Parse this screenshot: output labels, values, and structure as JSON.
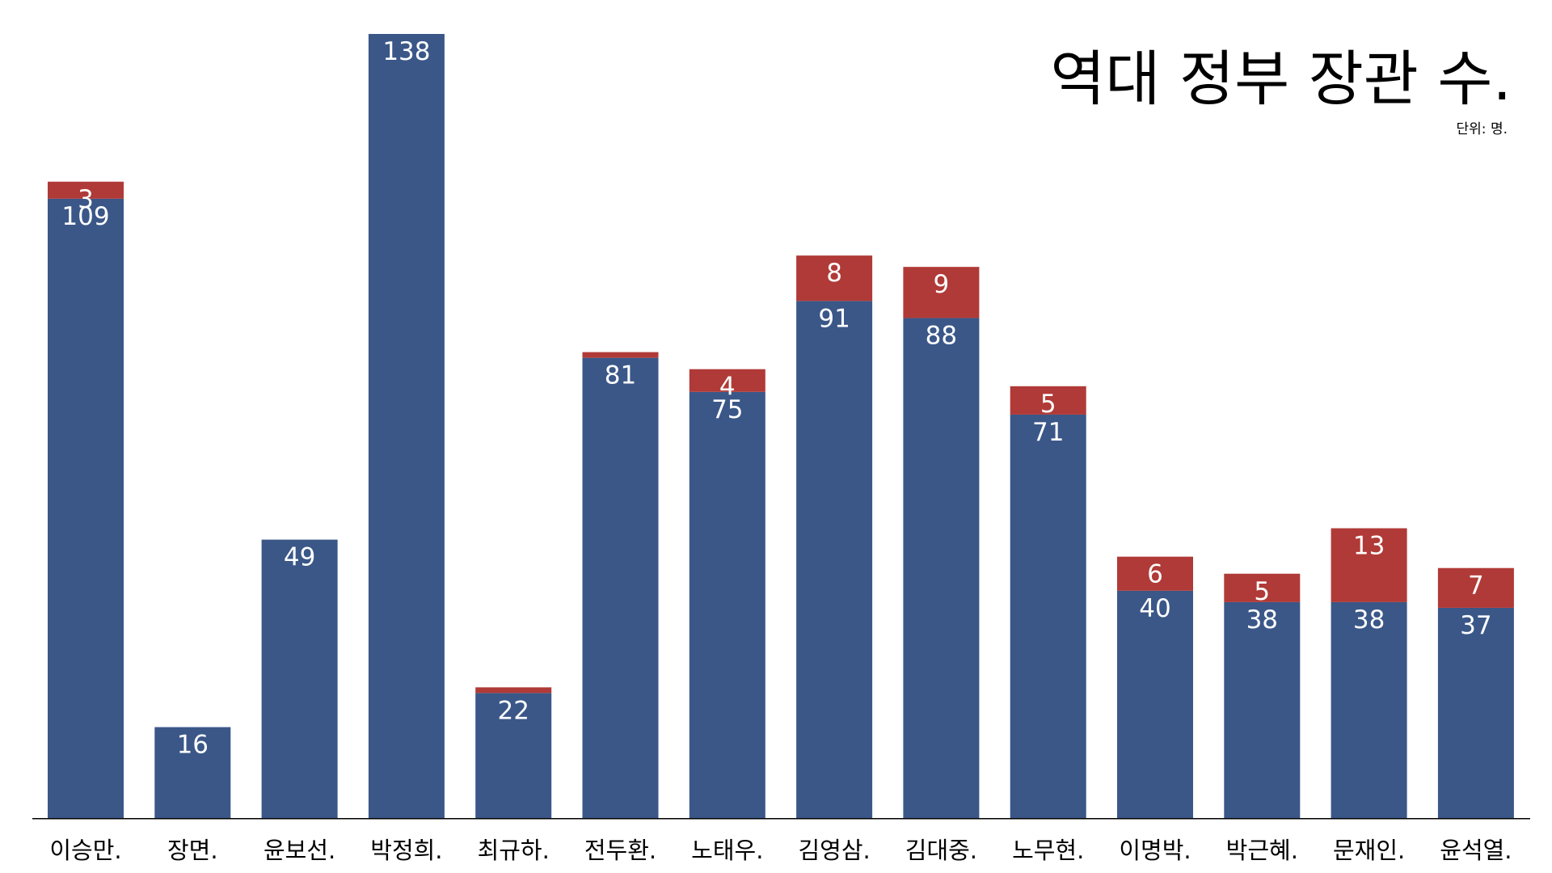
{
  "chart_data": {
    "type": "bar",
    "stacked": true,
    "title": "역대 정부 장관 수.",
    "unit": "단위: 명.",
    "categories": [
      "이승만.",
      "장면.",
      "윤보선.",
      "박정희.",
      "최규하.",
      "전두환.",
      "노태우.",
      "김영삼.",
      "김대중.",
      "노무현.",
      "이명박.",
      "박근혜.",
      "문재인.",
      "윤석열."
    ],
    "series": [
      {
        "color": "#3A5788",
        "values": [
          109,
          16,
          49,
          138,
          22,
          81,
          75,
          91,
          88,
          71,
          40,
          38,
          38,
          37
        ],
        "labels": [
          "109",
          "16",
          "49",
          "138",
          "22",
          "81",
          "75",
          "91",
          "88",
          "71",
          "40",
          "38",
          "38",
          "37"
        ]
      },
      {
        "color": "#B03A37",
        "values": [
          3,
          0,
          0,
          0,
          1,
          1,
          4,
          8,
          9,
          5,
          6,
          5,
          13,
          7
        ],
        "labels": [
          "3",
          "",
          "",
          "",
          "",
          "",
          "4",
          "8",
          "9",
          "5",
          "6",
          "5",
          "13",
          "7"
        ]
      }
    ],
    "ylim": [
      0,
      138
    ],
    "grid": false,
    "legend": "none",
    "label_color": "#FFFFFF",
    "axis_color": "#000000"
  }
}
